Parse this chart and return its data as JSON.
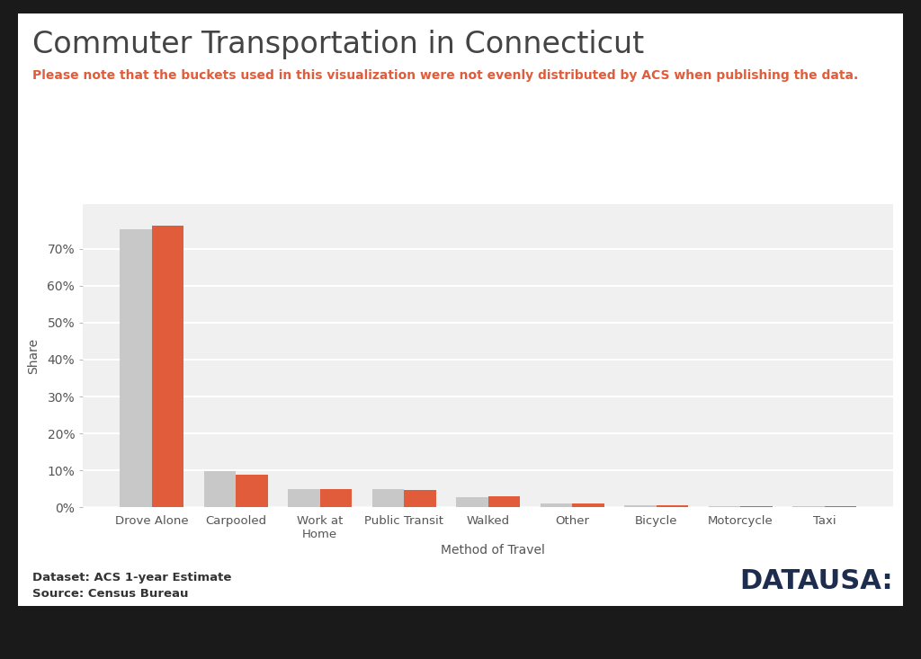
{
  "title": "Commuter Transportation in Connecticut",
  "subtitle": "Please note that the buckets used in this visualization were not evenly distributed by ACS when publishing the data.",
  "xlabel": "Method of Travel",
  "ylabel": "Share",
  "categories": [
    "Drove Alone",
    "Carpooled",
    "Work at\nHome",
    "Public Transit",
    "Walked",
    "Other",
    "Bicycle",
    "Motorcycle",
    "Taxi"
  ],
  "values_gray": [
    75.2,
    9.8,
    5.0,
    4.9,
    2.8,
    1.0,
    0.7,
    0.4,
    0.3
  ],
  "values_orange": [
    76.1,
    8.9,
    4.9,
    4.8,
    3.1,
    1.1,
    0.6,
    0.3,
    0.4
  ],
  "color_gray": "#c8c8c8",
  "color_orange": "#e05c3a",
  "background_color": "#1a1a1a",
  "plot_bg_color": "#f0f0f0",
  "title_color": "#444444",
  "subtitle_color": "#e05c3a",
  "axis_label_color": "#555555",
  "tick_label_color": "#555555",
  "ytick_labels": [
    "0%",
    "10%",
    "20%",
    "30%",
    "40%",
    "50%",
    "60%",
    "70%"
  ],
  "ytick_vals": [
    0,
    10,
    20,
    30,
    40,
    50,
    60,
    70
  ],
  "ylim": [
    0,
    82
  ],
  "footer_dataset": "Dataset: ACS 1-year Estimate",
  "footer_source": "Source: Census Bureau",
  "datausa_text": "DATAUSA:",
  "footer_color": "#333333",
  "datausa_color": "#1d2d4e",
  "chart_bg_color": "#f5f5f5",
  "inner_bg_color": "#ffffff"
}
